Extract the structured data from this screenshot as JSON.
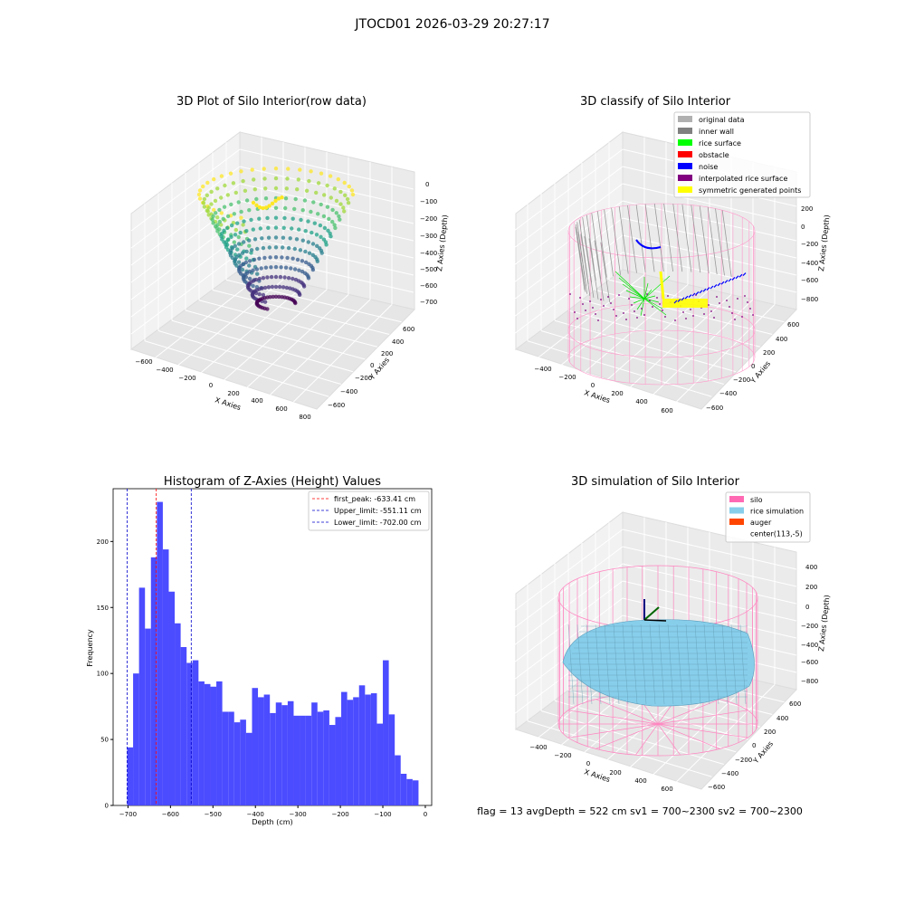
{
  "suptitle": "JTOCD01 2026-03-29 20:27:17",
  "footer": "flag = 13   avgDepth = 522 cm  sv1 = 700~2300  sv2 = 700~2300",
  "chart_data": [
    {
      "type": "scatter",
      "title": "3D Plot of Silo Interior(row data)",
      "xlabel": "X Axies",
      "ylabel": "Y Axies",
      "zlabel": "Z Axies (Depth)",
      "x_ticks": [
        "−600",
        "−400",
        "−200",
        "0",
        "200",
        "400",
        "600",
        "800"
      ],
      "y_ticks": [
        "600",
        "400",
        "200",
        "0",
        "−200",
        "−400",
        "−600"
      ],
      "z_ticks": [
        "0",
        "−100",
        "−200",
        "−300",
        "−400",
        "−500",
        "−600",
        "−700"
      ],
      "xlim": [
        -700,
        850
      ],
      "ylim": [
        -650,
        650
      ],
      "zlim": [
        -720,
        0
      ],
      "colormap": "viridis"
    },
    {
      "type": "scatter",
      "title": "3D classify of Silo Interior",
      "xlabel": "X Axies",
      "ylabel": "Y Axies",
      "zlabel": "Z Axies (Depth)",
      "x_ticks": [
        "−400",
        "−200",
        "0",
        "200",
        "400",
        "600"
      ],
      "y_ticks": [
        "600",
        "400",
        "200",
        "0",
        "−200",
        "−400",
        "−600"
      ],
      "z_ticks": [
        "200",
        "0",
        "−200",
        "−400",
        "−600",
        "−800"
      ],
      "legend_position": "top-right",
      "legend": [
        {
          "label": "original data",
          "color": "#b0b0b0"
        },
        {
          "label": "inner wall",
          "color": "#808080"
        },
        {
          "label": "rice surface",
          "color": "#00ff00"
        },
        {
          "label": "obstacle",
          "color": "#ff0000"
        },
        {
          "label": "noise",
          "color": "#0000ff"
        },
        {
          "label": "interpolated rice surface",
          "color": "#800080"
        },
        {
          "label": "symmetric generated points",
          "color": "#ffff00"
        }
      ]
    },
    {
      "type": "bar",
      "title": "Histogram of Z-Axies (Height) Values",
      "xlabel": "Depth (cm)",
      "ylabel": "Frequency",
      "bar_color": "#4b4bff",
      "xlim": [
        -735,
        15
      ],
      "ylim": [
        0,
        240
      ],
      "x_ticks": [
        -700,
        -600,
        -500,
        -400,
        -300,
        -200,
        -100,
        0
      ],
      "y_ticks": [
        0,
        50,
        100,
        150,
        200
      ],
      "bin_start": -702.0,
      "bin_end": -16.0,
      "values": [
        44,
        100,
        165,
        134,
        188,
        230,
        194,
        162,
        138,
        120,
        108,
        110,
        94,
        92,
        90,
        94,
        71,
        71,
        63,
        65,
        55,
        89,
        82,
        84,
        70,
        78,
        76,
        79,
        68,
        68,
        68,
        78,
        71,
        72,
        61,
        67,
        86,
        80,
        82,
        91,
        84,
        85,
        62,
        110,
        69,
        38,
        24,
        20,
        19
      ],
      "vlines": [
        {
          "label": "first_peak: -633.41 cm",
          "x": -633.41,
          "color": "#ff0000"
        },
        {
          "label": "Upper_limit: -551.11 cm",
          "x": -551.11,
          "color": "#0000cc"
        },
        {
          "label": "Lower_limit: -702.00 cm",
          "x": -702.0,
          "color": "#0000cc"
        }
      ],
      "legend_position": "top-right"
    },
    {
      "type": "surface",
      "title": "3D simulation of Silo Interior",
      "xlabel": "X Axies",
      "ylabel": "Y Axies",
      "zlabel": "Z Axies (Depth)",
      "x_ticks": [
        "−400",
        "−200",
        "0",
        "200",
        "400",
        "600"
      ],
      "y_ticks": [
        "600",
        "400",
        "200",
        "0",
        "−200",
        "−400",
        "−600"
      ],
      "z_ticks": [
        "400",
        "200",
        "0",
        "−200",
        "−400",
        "−600",
        "−800"
      ],
      "legend_position": "top-right",
      "legend": [
        {
          "label": "silo",
          "color": "#ff69b4"
        },
        {
          "label": "rice simulation",
          "color": "#87ceeb"
        },
        {
          "label": "auger",
          "color": "#ff4500"
        },
        {
          "label": "center(113,-5)",
          "color": ""
        }
      ]
    }
  ]
}
